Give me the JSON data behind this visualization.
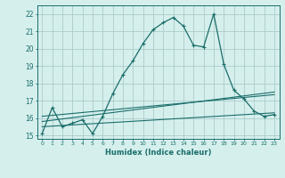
{
  "xlabel": "Humidex (Indice chaleur)",
  "background_color": "#d5efed",
  "grid_color": "#aaccca",
  "line_color": "#1a6e6a",
  "xlim": [
    -0.5,
    23.5
  ],
  "ylim": [
    14.8,
    22.5
  ],
  "yticks": [
    15,
    16,
    17,
    18,
    19,
    20,
    21,
    22
  ],
  "xticks": [
    0,
    1,
    2,
    3,
    4,
    5,
    6,
    7,
    8,
    9,
    10,
    11,
    12,
    13,
    14,
    15,
    16,
    17,
    18,
    19,
    20,
    21,
    22,
    23
  ],
  "main_series": {
    "x": [
      0,
      1,
      2,
      3,
      4,
      5,
      6,
      7,
      8,
      9,
      10,
      11,
      12,
      13,
      14,
      15,
      16,
      17,
      18,
      19,
      20,
      21,
      22,
      23
    ],
    "y": [
      15.1,
      16.6,
      15.5,
      15.7,
      15.9,
      15.1,
      16.1,
      17.4,
      18.5,
      19.3,
      20.3,
      21.1,
      21.5,
      21.8,
      21.3,
      20.2,
      20.1,
      22.0,
      19.1,
      17.6,
      17.1,
      16.4,
      16.1,
      16.2
    ]
  },
  "line2": {
    "x": [
      0,
      1,
      2,
      3,
      4,
      5,
      6,
      7,
      8,
      9,
      10,
      11,
      12,
      13,
      14,
      15,
      16,
      17,
      18,
      19,
      20,
      21,
      22,
      23
    ],
    "y": [
      15.1,
      15.2,
      15.3,
      15.4,
      15.5,
      15.6,
      15.7,
      15.8,
      15.9,
      16.0,
      16.1,
      16.2,
      16.3,
      16.4,
      16.5,
      16.6,
      16.7,
      16.8,
      16.9,
      16.95,
      17.0,
      17.05,
      17.1,
      17.15
    ]
  },
  "line3": {
    "x": [
      0,
      23
    ],
    "y": [
      15.5,
      16.3
    ]
  },
  "line4": {
    "x": [
      0,
      23
    ],
    "y": [
      15.8,
      17.5
    ]
  },
  "line5": {
    "x": [
      0,
      23
    ],
    "y": [
      16.1,
      17.35
    ]
  }
}
